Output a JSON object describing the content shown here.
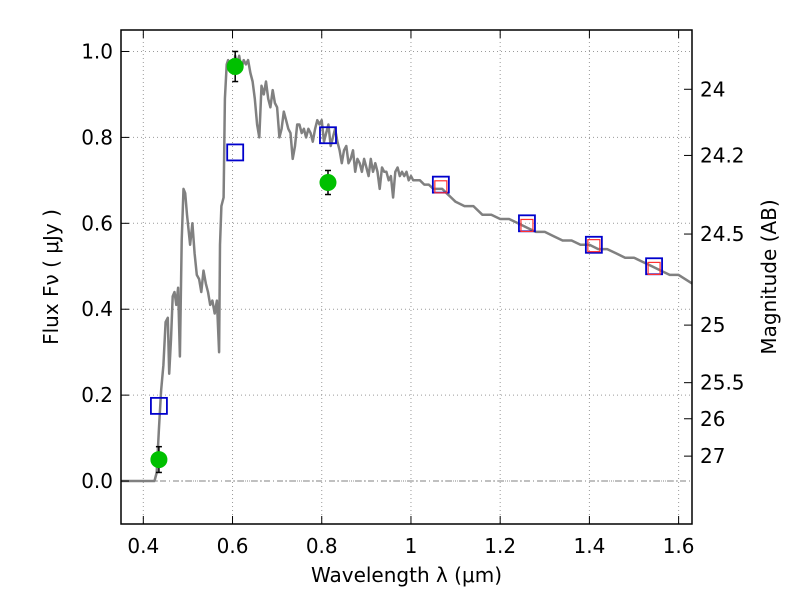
{
  "chart_data": {
    "type": "line",
    "xlabel": "Wavelength  λ (μm)",
    "ylabel": "Flux  Fν  ( μJy )",
    "y2label": "Magnitude (AB)",
    "xlim": [
      0.35,
      1.63
    ],
    "ylim": [
      -0.1,
      1.05
    ],
    "grid": true,
    "x_ticks": [
      0.4,
      0.6,
      0.8,
      1.0,
      1.2,
      1.4,
      1.6
    ],
    "x_tick_labels": [
      "0.4",
      "0.6",
      "0.8",
      "1",
      "1.2",
      "1.4",
      "1.6"
    ],
    "y_ticks": [
      0.0,
      0.2,
      0.4,
      0.6,
      0.8,
      1.0
    ],
    "y_tick_labels": [
      "0.0",
      "0.2",
      "0.4",
      "0.6",
      "0.8",
      "1.0"
    ],
    "y2_ticks": [
      {
        "label": "24",
        "flux": 0.912
      },
      {
        "label": "24.2",
        "flux": 0.758
      },
      {
        "label": "24.5",
        "flux": 0.575
      },
      {
        "label": "25",
        "flux": 0.363
      },
      {
        "label": "25.5",
        "flux": 0.229
      },
      {
        "label": "26",
        "flux": 0.145
      },
      {
        "label": "27",
        "flux": 0.058
      }
    ],
    "reference_line": {
      "y": 0.0,
      "style": "dash-dot",
      "color": "#808080"
    },
    "series": [
      {
        "kind": "line",
        "color": "#808080",
        "points": [
          [
            0.35,
            0.0
          ],
          [
            0.42,
            0.0
          ],
          [
            0.425,
            0.0
          ],
          [
            0.43,
            0.02
          ],
          [
            0.435,
            0.12
          ],
          [
            0.44,
            0.21
          ],
          [
            0.445,
            0.27
          ],
          [
            0.45,
            0.37
          ],
          [
            0.455,
            0.38
          ],
          [
            0.458,
            0.25
          ],
          [
            0.462,
            0.33
          ],
          [
            0.466,
            0.43
          ],
          [
            0.47,
            0.44
          ],
          [
            0.474,
            0.41
          ],
          [
            0.478,
            0.45
          ],
          [
            0.482,
            0.29
          ],
          [
            0.486,
            0.56
          ],
          [
            0.49,
            0.68
          ],
          [
            0.494,
            0.67
          ],
          [
            0.498,
            0.62
          ],
          [
            0.505,
            0.55
          ],
          [
            0.51,
            0.6
          ],
          [
            0.515,
            0.53
          ],
          [
            0.52,
            0.48
          ],
          [
            0.525,
            0.47
          ],
          [
            0.53,
            0.44
          ],
          [
            0.535,
            0.49
          ],
          [
            0.54,
            0.46
          ],
          [
            0.545,
            0.44
          ],
          [
            0.55,
            0.41
          ],
          [
            0.555,
            0.42
          ],
          [
            0.56,
            0.39
          ],
          [
            0.565,
            0.42
          ],
          [
            0.57,
            0.3
          ],
          [
            0.572,
            0.55
          ],
          [
            0.575,
            0.64
          ],
          [
            0.58,
            0.66
          ],
          [
            0.583,
            0.89
          ],
          [
            0.587,
            0.97
          ],
          [
            0.59,
            0.98
          ],
          [
            0.595,
            0.96
          ],
          [
            0.6,
            0.98
          ],
          [
            0.603,
            0.96
          ],
          [
            0.606,
            0.99
          ],
          [
            0.61,
            0.97
          ],
          [
            0.615,
            0.99
          ],
          [
            0.62,
            0.96
          ],
          [
            0.625,
            0.98
          ],
          [
            0.63,
            0.97
          ],
          [
            0.635,
            0.98
          ],
          [
            0.64,
            0.95
          ],
          [
            0.645,
            0.93
          ],
          [
            0.65,
            0.89
          ],
          [
            0.655,
            0.83
          ],
          [
            0.66,
            0.8
          ],
          [
            0.665,
            0.92
          ],
          [
            0.67,
            0.9
          ],
          [
            0.675,
            0.93
          ],
          [
            0.68,
            0.89
          ],
          [
            0.685,
            0.87
          ],
          [
            0.69,
            0.91
          ],
          [
            0.695,
            0.88
          ],
          [
            0.7,
            0.87
          ],
          [
            0.705,
            0.8
          ],
          [
            0.71,
            0.82
          ],
          [
            0.715,
            0.86
          ],
          [
            0.72,
            0.84
          ],
          [
            0.725,
            0.82
          ],
          [
            0.73,
            0.81
          ],
          [
            0.735,
            0.75
          ],
          [
            0.74,
            0.78
          ],
          [
            0.745,
            0.83
          ],
          [
            0.75,
            0.83
          ],
          [
            0.755,
            0.81
          ],
          [
            0.76,
            0.82
          ],
          [
            0.765,
            0.8
          ],
          [
            0.77,
            0.82
          ],
          [
            0.775,
            0.81
          ],
          [
            0.78,
            0.79
          ],
          [
            0.785,
            0.82
          ],
          [
            0.79,
            0.84
          ],
          [
            0.795,
            0.83
          ],
          [
            0.8,
            0.84
          ],
          [
            0.805,
            0.79
          ],
          [
            0.81,
            0.81
          ],
          [
            0.815,
            0.83
          ],
          [
            0.82,
            0.78
          ],
          [
            0.825,
            0.8
          ],
          [
            0.83,
            0.82
          ],
          [
            0.835,
            0.79
          ],
          [
            0.84,
            0.77
          ],
          [
            0.845,
            0.74
          ],
          [
            0.85,
            0.77
          ],
          [
            0.855,
            0.78
          ],
          [
            0.86,
            0.74
          ],
          [
            0.865,
            0.75
          ],
          [
            0.87,
            0.77
          ],
          [
            0.875,
            0.72
          ],
          [
            0.88,
            0.75
          ],
          [
            0.885,
            0.74
          ],
          [
            0.89,
            0.72
          ],
          [
            0.895,
            0.75
          ],
          [
            0.9,
            0.73
          ],
          [
            0.905,
            0.71
          ],
          [
            0.91,
            0.75
          ],
          [
            0.915,
            0.72
          ],
          [
            0.92,
            0.74
          ],
          [
            0.925,
            0.72
          ],
          [
            0.93,
            0.68
          ],
          [
            0.935,
            0.73
          ],
          [
            0.94,
            0.72
          ],
          [
            0.945,
            0.72
          ],
          [
            0.95,
            0.7
          ],
          [
            0.955,
            0.71
          ],
          [
            0.96,
            0.66
          ],
          [
            0.965,
            0.72
          ],
          [
            0.97,
            0.73
          ],
          [
            0.975,
            0.71
          ],
          [
            0.98,
            0.72
          ],
          [
            0.985,
            0.71
          ],
          [
            0.99,
            0.72
          ],
          [
            0.995,
            0.7
          ],
          [
            1.0,
            0.71
          ],
          [
            1.005,
            0.7
          ],
          [
            1.01,
            0.7
          ],
          [
            1.02,
            0.7
          ],
          [
            1.03,
            0.69
          ],
          [
            1.04,
            0.69
          ],
          [
            1.05,
            0.68
          ],
          [
            1.06,
            0.68
          ],
          [
            1.07,
            0.68
          ],
          [
            1.08,
            0.67
          ],
          [
            1.09,
            0.66
          ],
          [
            1.1,
            0.65
          ],
          [
            1.12,
            0.64
          ],
          [
            1.14,
            0.64
          ],
          [
            1.16,
            0.62
          ],
          [
            1.18,
            0.62
          ],
          [
            1.2,
            0.61
          ],
          [
            1.22,
            0.61
          ],
          [
            1.24,
            0.6
          ],
          [
            1.26,
            0.59
          ],
          [
            1.28,
            0.58
          ],
          [
            1.3,
            0.58
          ],
          [
            1.32,
            0.57
          ],
          [
            1.34,
            0.56
          ],
          [
            1.36,
            0.56
          ],
          [
            1.38,
            0.55
          ],
          [
            1.4,
            0.55
          ],
          [
            1.42,
            0.54
          ],
          [
            1.44,
            0.54
          ],
          [
            1.46,
            0.53
          ],
          [
            1.48,
            0.52
          ],
          [
            1.5,
            0.52
          ],
          [
            1.52,
            0.51
          ],
          [
            1.54,
            0.5
          ],
          [
            1.56,
            0.49
          ],
          [
            1.58,
            0.48
          ],
          [
            1.6,
            0.48
          ],
          [
            1.63,
            0.46
          ]
        ]
      },
      {
        "kind": "errorbar",
        "color": "#00c000",
        "points": [
          {
            "x": 0.435,
            "y": 0.05,
            "err": 0.03
          },
          {
            "x": 0.606,
            "y": 0.965,
            "err": 0.035
          },
          {
            "x": 0.814,
            "y": 0.695,
            "err": 0.028
          }
        ]
      },
      {
        "kind": "open-square",
        "color": "#0000cc",
        "points": [
          [
            0.435,
            0.175
          ],
          [
            0.606,
            0.765
          ],
          [
            0.814,
            0.805
          ],
          [
            1.067,
            0.69
          ],
          [
            1.26,
            0.6
          ],
          [
            1.41,
            0.55
          ],
          [
            1.545,
            0.5
          ]
        ]
      },
      {
        "kind": "open-square-small",
        "color": "#ff3030",
        "points": [
          [
            1.067,
            0.685
          ],
          [
            1.26,
            0.595
          ],
          [
            1.41,
            0.548
          ],
          [
            1.545,
            0.495
          ]
        ]
      }
    ]
  }
}
